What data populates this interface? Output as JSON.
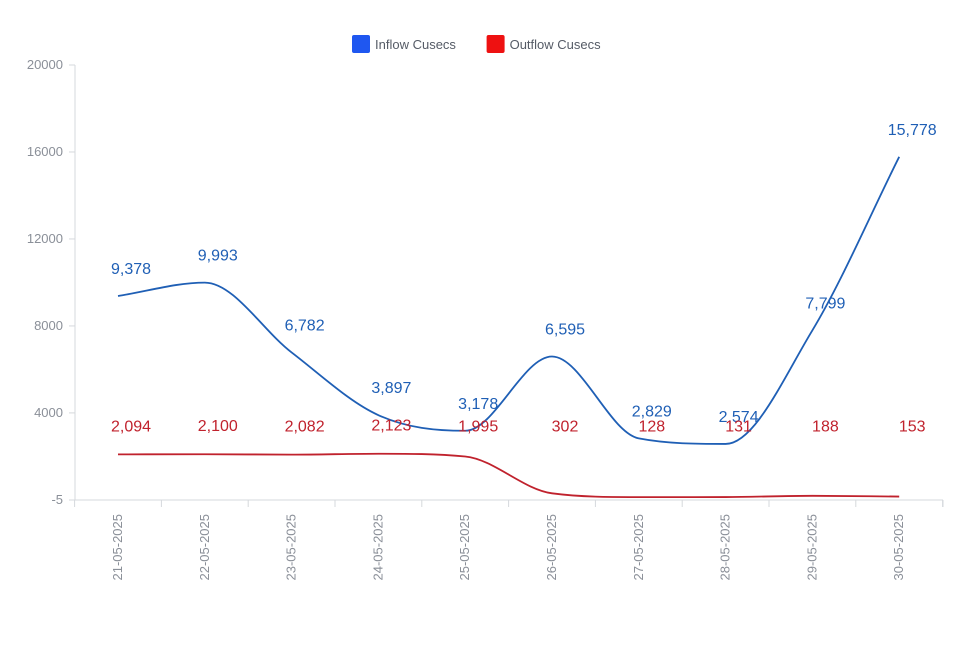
{
  "chart_data": {
    "type": "line",
    "title": "",
    "xlabel": "",
    "ylabel": "",
    "categories": [
      "21-05-2025",
      "22-05-2025",
      "23-05-2025",
      "24-05-2025",
      "25-05-2025",
      "26-05-2025",
      "27-05-2025",
      "28-05-2025",
      "29-05-2025",
      "30-05-2025"
    ],
    "y_ticks": [
      -5,
      4000,
      8000,
      12000,
      16000,
      20000
    ],
    "y_tick_labels": [
      "-5",
      "4000",
      "8000",
      "12000",
      "16000",
      "20000"
    ],
    "ylim": [
      -5,
      20000
    ],
    "grid": false,
    "legend_position": "top-center",
    "series": [
      {
        "name": "Inflow Cusecs",
        "color": "#1f5fb5",
        "legend_color": "#1f57f0",
        "values": [
          9378,
          9993,
          6782,
          3897,
          3178,
          6595,
          2829,
          2574,
          7799,
          15778
        ],
        "labels": [
          "9,378",
          "9,993",
          "6,782",
          "3,897",
          "3,178",
          "6,595",
          "2,829",
          "2,574",
          "7,799",
          "15,778"
        ]
      },
      {
        "name": "Outflow Cusecs",
        "color": "#c0222d",
        "legend_color": "#ee1111",
        "values": [
          2094,
          2100,
          2082,
          2123,
          1995,
          302,
          128,
          131,
          188,
          153
        ],
        "labels": [
          "2,094",
          "2,100",
          "2,082",
          "2,123",
          "1,995",
          "302",
          "128",
          "131",
          "188",
          "153"
        ]
      }
    ]
  }
}
